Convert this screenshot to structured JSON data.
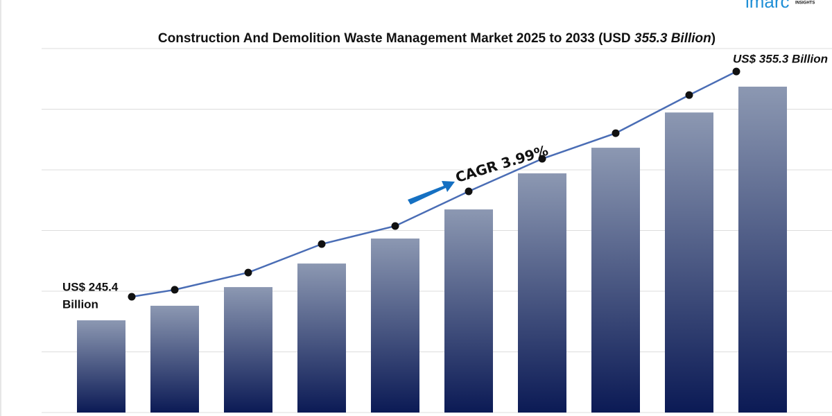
{
  "logo": "imarc",
  "logo_sub": "INSIGHTS",
  "chart_data": {
    "type": "bar-line",
    "title": [
      "Construction And Demolition Waste Management Market 2025 to 2033 (USD ",
      "355.3 Billion",
      ")"
    ],
    "annotation": "CAGR 3.99%",
    "categories": [
      null,
      null,
      null,
      null,
      null,
      null,
      null,
      null,
      null,
      null
    ],
    "ylim": [
      188.9,
      366.5
    ],
    "bar_colors": [
      "#8c98b2",
      "#0b1a55"
    ],
    "line_color": "#4a6db5",
    "values": [
      233.9,
      241.0,
      250.1,
      261.6,
      273.8,
      288.0,
      305.6,
      318.1,
      335.3,
      347.9
    ],
    "line_values": [
      245.4,
      248.8,
      257.2,
      271.1,
      279.9,
      296.8,
      312.7,
      325.2,
      343.8,
      355.3
    ],
    "line_value_labels": [
      [
        "US$ 245.4",
        "Billion"
      ],
      null,
      null,
      null,
      null,
      null,
      null,
      null,
      null,
      [
        "US$ 355.3 Billion"
      ]
    ]
  }
}
